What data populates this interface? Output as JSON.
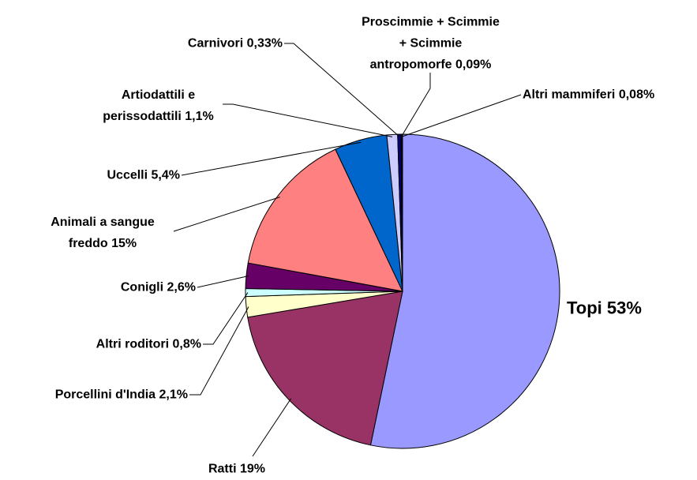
{
  "chart_data": {
    "type": "pie",
    "categories": [
      "Topi",
      "Ratti",
      "Porcellini d'India",
      "Altri roditori",
      "Conigli",
      "Animali a sangue freddo",
      "Uccelli",
      "Artiodattili e perissodattili",
      "Carnivori",
      "Proscimmie + Scimmie + Scimmie antropomorfe",
      "Altri mammiferi"
    ],
    "values": [
      53,
      19,
      2.1,
      0.8,
      2.6,
      15,
      5.4,
      1.1,
      0.33,
      0.09,
      0.08
    ],
    "value_labels": [
      "53%",
      "19%",
      "2,1%",
      "0,8%",
      "2,6%",
      "15%",
      "5,4%",
      "1,1%",
      "0,33%",
      "0,09%",
      "0,08%"
    ],
    "colors": [
      "#9999ff",
      "#993366",
      "#ffffcc",
      "#ccffff",
      "#660066",
      "#ff8080",
      "#0066cc",
      "#ccccff",
      "#000080",
      "#ff00ff",
      "#cc0066"
    ]
  }
}
